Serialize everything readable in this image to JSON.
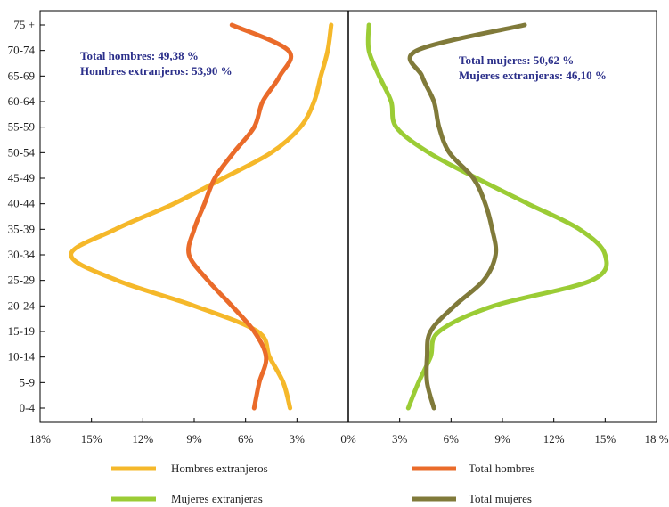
{
  "chart_data": {
    "type": "line",
    "title": "",
    "xlabel": "",
    "ylabel": "",
    "categories": [
      "0-4",
      "5-9",
      "10-14",
      "15-19",
      "20-24",
      "25-29",
      "30-34",
      "35-39",
      "40-44",
      "45-49",
      "50-54",
      "55-59",
      "60-64",
      "65-69",
      "70-74",
      "75 +"
    ],
    "x_ticks": [
      "18%",
      "15%",
      "12%",
      "9%",
      "6%",
      "3%",
      "0%",
      "3%",
      "6%",
      "9%",
      "12%",
      "15%",
      "18 %"
    ],
    "xlim": [
      -18,
      18
    ],
    "grid": false,
    "series": [
      {
        "name": "Hombres extranjeros",
        "side": "left",
        "color": "#f5b82a",
        "values": [
          3.4,
          3.8,
          4.6,
          5.3,
          9.0,
          13.5,
          16.2,
          13.6,
          10.2,
          7.3,
          4.5,
          2.8,
          2.0,
          1.6,
          1.2,
          1.0
        ]
      },
      {
        "name": "Total hombres",
        "side": "left",
        "color": "#ea6b2a",
        "values": [
          5.5,
          5.2,
          4.8,
          5.5,
          6.8,
          8.2,
          9.3,
          9.0,
          8.4,
          7.8,
          6.7,
          5.5,
          5.0,
          4.0,
          3.5,
          6.8
        ]
      },
      {
        "name": "Mujeres extranjeras",
        "side": "right",
        "color": "#9bcc35",
        "values": [
          3.5,
          4.1,
          4.8,
          5.3,
          8.5,
          14.2,
          15.0,
          13.5,
          10.5,
          7.5,
          4.7,
          2.8,
          2.5,
          1.8,
          1.2,
          1.2
        ]
      },
      {
        "name": "Total mujeres",
        "side": "right",
        "color": "#807a3a",
        "values": [
          5.0,
          4.6,
          4.6,
          4.8,
          6.2,
          7.9,
          8.6,
          8.4,
          8.0,
          7.3,
          5.9,
          5.3,
          5.0,
          4.3,
          4.0,
          10.3
        ]
      }
    ],
    "annotations": [
      {
        "id": "total-hombres",
        "text": "Total hombres: 49,38 %"
      },
      {
        "id": "hombres-extranjeros",
        "text": "Hombres extranjeros: 53,90 %"
      },
      {
        "id": "total-mujeres",
        "text": "Total mujeres: 50,62 %"
      },
      {
        "id": "mujeres-extranjeras",
        "text": "Mujeres extranjeras: 46,10 %"
      }
    ],
    "legend": {
      "placement": "bottom",
      "entries": [
        "Hombres extranjeros",
        "Total hombres",
        "Mujeres extranjeras",
        "Total mujeres"
      ]
    }
  }
}
